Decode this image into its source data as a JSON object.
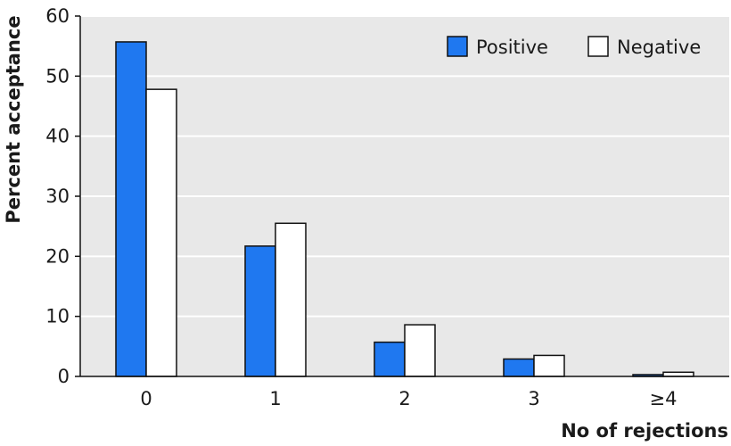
{
  "chart_data": {
    "type": "bar",
    "title": "",
    "xlabel": "No of rejections",
    "ylabel": "Percent acceptance",
    "categories": [
      "0",
      "1",
      "2",
      "3",
      "≥4"
    ],
    "series": [
      {
        "name": "Positive",
        "values": [
          55.7,
          21.7,
          5.7,
          2.9,
          0.3
        ],
        "color": "#1f78f0"
      },
      {
        "name": "Negative",
        "values": [
          47.8,
          25.5,
          8.6,
          3.5,
          0.7
        ],
        "color": "#ffffff"
      }
    ],
    "ylim": [
      0,
      60
    ],
    "yticks": [
      0,
      10,
      20,
      30,
      40,
      50,
      60
    ],
    "grid": true,
    "legend_position": "top-right",
    "colors": {
      "plot_background": "#e8e8e8",
      "gridline": "#ffffff",
      "bar_outline": "#111111"
    }
  }
}
